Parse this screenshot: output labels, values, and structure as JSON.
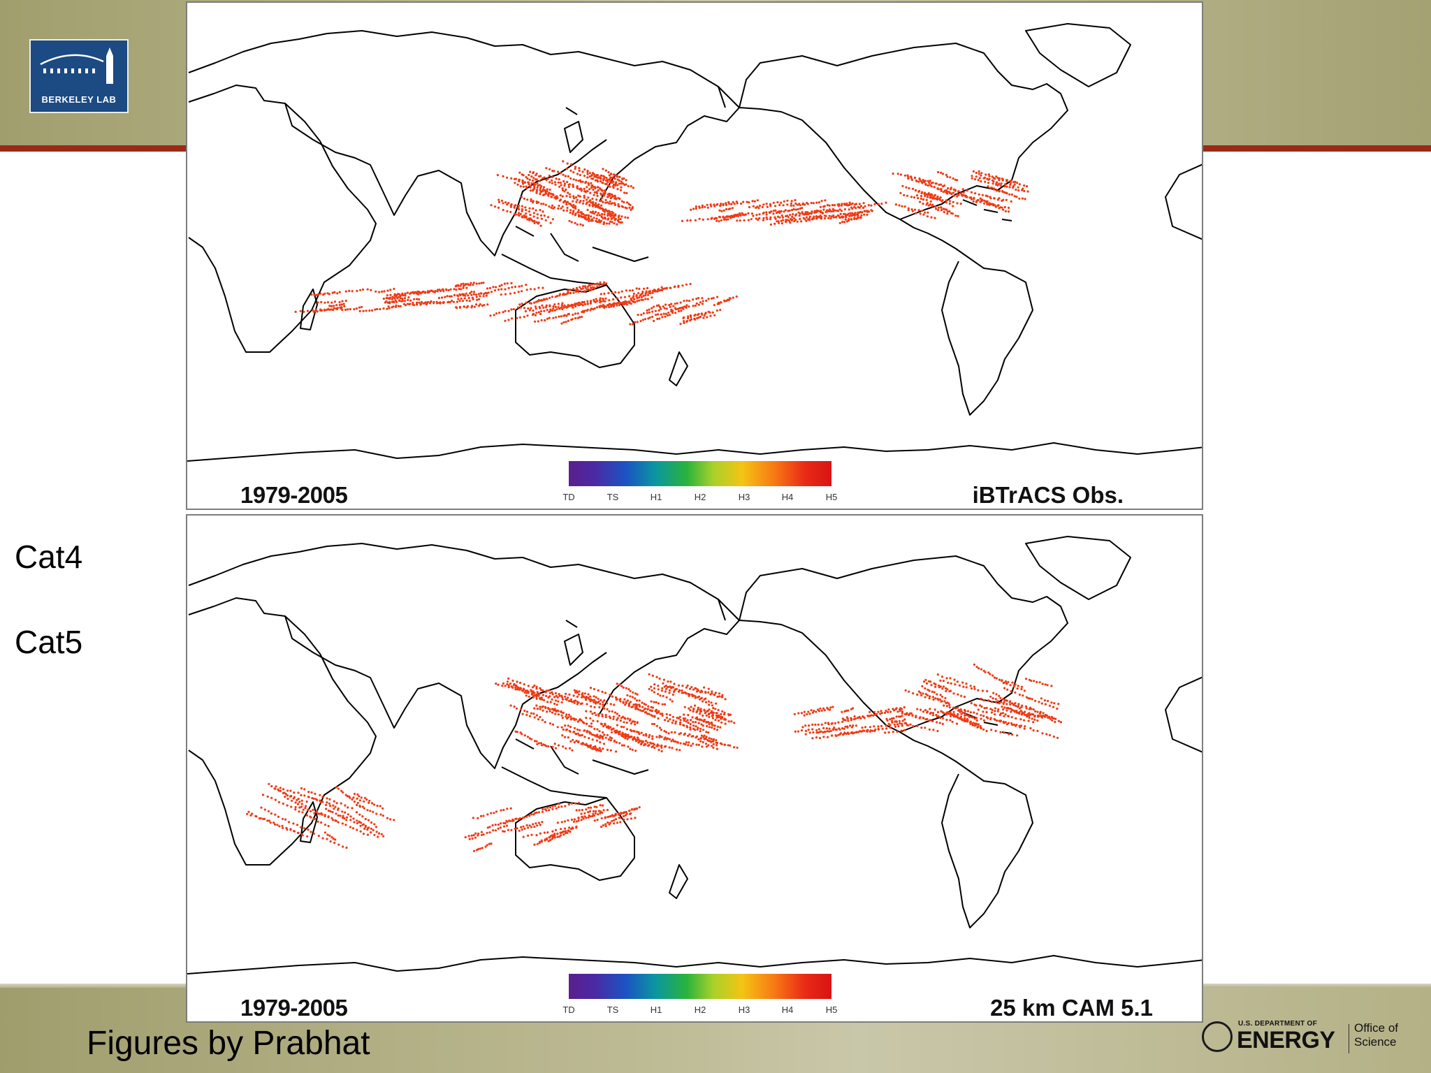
{
  "logo": {
    "text": "BERKELEY LAB"
  },
  "side_labels": [
    "Cat4",
    "Cat5"
  ],
  "credit": "Figures by Prabhat",
  "doe": {
    "small_text": "U.S. DEPARTMENT OF",
    "wordmark": "ENERGY",
    "office": "Office of Science"
  },
  "colors": {
    "coastline": "#000000",
    "tracks": "#f03a14",
    "background": "#ffffff"
  },
  "map_panels": [
    {
      "years": "1979-2005",
      "dataset": "iBTrACS Obs.",
      "colorbar_ticks": [
        "TD",
        "TS",
        "H1",
        "H2",
        "H3",
        "H4",
        "H5"
      ]
    },
    {
      "years": "1979-2005",
      "dataset": "25 km CAM 5.1",
      "colorbar_ticks": [
        "TD",
        "TS",
        "H1",
        "H2",
        "H3",
        "H4",
        "H5"
      ]
    }
  ]
}
